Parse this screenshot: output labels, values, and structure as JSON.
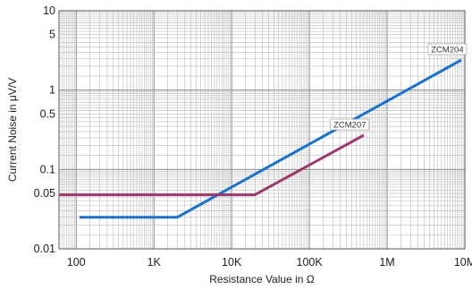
{
  "chart_data": {
    "type": "line",
    "xlabel": "Resistance Value in Ω",
    "ylabel": "Current Noise in μV/V",
    "xscale": "log",
    "yscale": "log",
    "xlim": [
      60,
      10000000
    ],
    "ylim": [
      0.01,
      10
    ],
    "grid": true,
    "x_ticks": [
      {
        "value": 100,
        "label": "100"
      },
      {
        "value": 1000,
        "label": "1K"
      },
      {
        "value": 10000,
        "label": "10K"
      },
      {
        "value": 100000,
        "label": "100K"
      },
      {
        "value": 1000000,
        "label": "1M"
      },
      {
        "value": 10000000,
        "label": "10M"
      }
    ],
    "y_ticks": [
      {
        "value": 0.01,
        "label": "0.01"
      },
      {
        "value": 0.05,
        "label": "0.05"
      },
      {
        "value": 0.1,
        "label": "0.1"
      },
      {
        "value": 0.5,
        "label": "0.5"
      },
      {
        "value": 1,
        "label": "1"
      },
      {
        "value": 5,
        "label": "5"
      },
      {
        "value": 10,
        "label": "10"
      }
    ],
    "series": [
      {
        "name": "ZCM204",
        "color": "#1a73c9",
        "points": [
          [
            110,
            0.025
          ],
          [
            2000,
            0.025
          ],
          [
            9000000,
            2.4
          ]
        ]
      },
      {
        "name": "ZCM207",
        "color": "#9c3a6e",
        "points": [
          [
            60,
            0.048
          ],
          [
            20000,
            0.048
          ],
          [
            500000,
            0.27
          ]
        ]
      }
    ]
  }
}
